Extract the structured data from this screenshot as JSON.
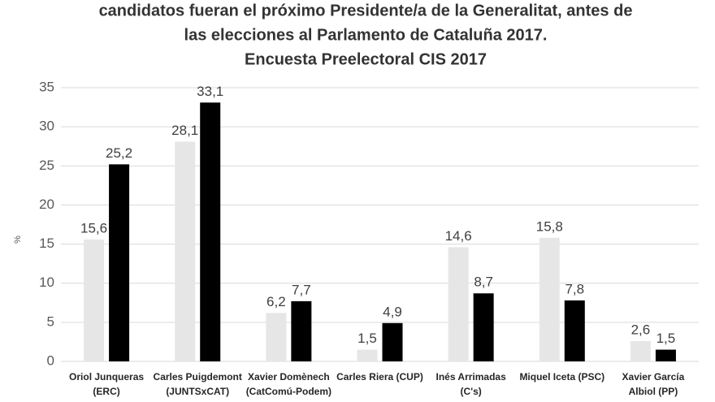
{
  "chart_data": {
    "type": "bar",
    "title": [
      "candidatos fueran el próximo Presidente/a de la Generalitat, antes de",
      "las elecciones al Parlamento de Cataluña 2017.",
      "Encuesta Preelectoral CIS 2017"
    ],
    "y_label": "%",
    "categories": [
      [
        "Oriol Junqueras",
        "(ERC)"
      ],
      [
        "Carles Puigdemont",
        "(JUNTSxCAT)"
      ],
      [
        "Xavier Domènech",
        "(CatComú-Podem)"
      ],
      [
        "Carles Riera (CUP)"
      ],
      [
        "Inés Arrimadas",
        "(C's)"
      ],
      [
        "Miquel Iceta (PSC)"
      ],
      [
        "Xavier García",
        "Albiol (PP)"
      ]
    ],
    "series": [
      {
        "color": "#e7e6e6",
        "values": [
          15.6,
          28.1,
          6.2,
          1.5,
          14.6,
          15.8,
          2.6
        ],
        "value_labels": [
          "15,6",
          "28,1",
          "6,2",
          "1,5",
          "14,6",
          "15,8",
          "2,6"
        ]
      },
      {
        "color": "#000000",
        "values": [
          25.2,
          33.1,
          7.7,
          4.9,
          8.7,
          7.8,
          1.5
        ],
        "value_labels": [
          "25,2",
          "33,1",
          "7,7",
          "4,9",
          "8,7",
          "7,8",
          "1,5"
        ]
      }
    ],
    "ylim": [
      0,
      35
    ],
    "yticks": [
      0,
      5,
      10,
      15,
      20,
      25,
      30,
      35
    ],
    "grid": true
  }
}
